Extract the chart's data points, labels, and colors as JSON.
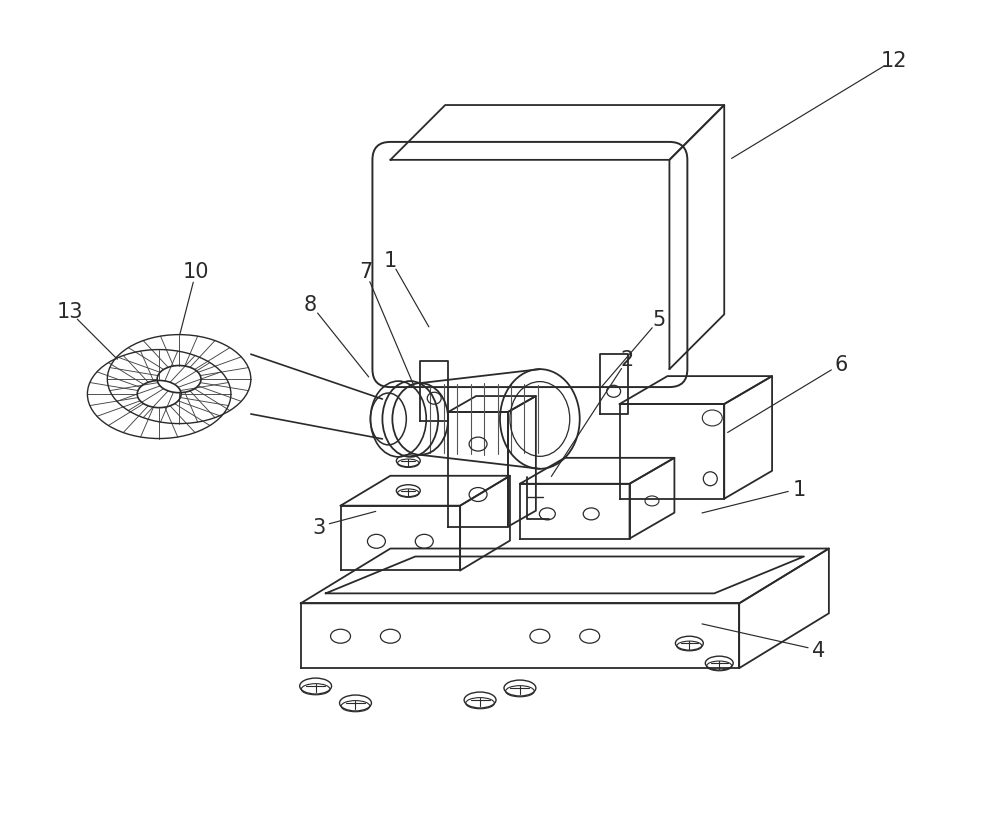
{
  "bg_color": "#ffffff",
  "line_color": "#2a2a2a",
  "line_width": 1.3,
  "label_fontsize": 15,
  "fig_width": 10.0,
  "fig_height": 8.2
}
